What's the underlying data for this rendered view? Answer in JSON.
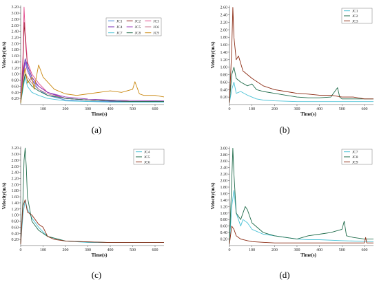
{
  "panels": [
    {
      "caption": "(a)"
    },
    {
      "caption": "(b)"
    },
    {
      "caption": "(c)"
    },
    {
      "caption": "(d)"
    }
  ],
  "chart_data": [
    {
      "type": "line",
      "panel": "a",
      "xlabel": "Time(s)",
      "ylabel": "Velocity(m/s)",
      "xlim": [
        0,
        640
      ],
      "ylim": [
        0,
        3.25
      ],
      "xticks": [
        "100",
        "200",
        "300",
        "400",
        "500",
        "600"
      ],
      "yticks": [
        "0.20",
        "0.40",
        "0.60",
        "0.80",
        "1.00",
        "1.20",
        "1.40",
        "1.60",
        "1.80",
        "2.00",
        "2.20",
        "2.40",
        "2.60",
        "2.80",
        "3.00",
        "3.20"
      ],
      "legend": "top-right",
      "series": [
        {
          "name": "JC1",
          "color": "#3b7fd4",
          "x": [
            0,
            10,
            20,
            30,
            50,
            80,
            120,
            200,
            300,
            400,
            500,
            640
          ],
          "y": [
            0.05,
            0.9,
            1.5,
            1.2,
            0.8,
            0.5,
            0.3,
            0.15,
            0.1,
            0.1,
            0.1,
            0.1
          ]
        },
        {
          "name": "JC2",
          "color": "#8b1a1a",
          "x": [
            0,
            10,
            15,
            20,
            30,
            50,
            80,
            120,
            200,
            300,
            400,
            500,
            640
          ],
          "y": [
            0.05,
            1.2,
            2.7,
            2.2,
            1.3,
            0.9,
            0.6,
            0.4,
            0.2,
            0.15,
            0.12,
            0.1,
            0.1
          ]
        },
        {
          "name": "JC3",
          "color": "#e14a8a",
          "x": [
            0,
            10,
            15,
            20,
            30,
            50,
            80,
            120,
            200,
            300,
            400,
            500,
            640
          ],
          "y": [
            0.05,
            1.6,
            3.2,
            2.4,
            1.4,
            1.0,
            0.7,
            0.4,
            0.2,
            0.15,
            0.12,
            0.1,
            0.1
          ]
        },
        {
          "name": "JC4",
          "color": "#7a2fb5",
          "x": [
            0,
            10,
            20,
            30,
            50,
            80,
            120,
            200,
            300,
            400,
            500,
            640
          ],
          "y": [
            0.05,
            1.0,
            1.5,
            1.3,
            0.9,
            0.6,
            0.4,
            0.2,
            0.15,
            0.12,
            0.1,
            0.1
          ]
        },
        {
          "name": "JC5",
          "color": "#9c3fbf",
          "x": [
            0,
            10,
            20,
            30,
            50,
            80,
            120,
            200,
            300,
            400,
            500,
            640
          ],
          "y": [
            0.05,
            0.8,
            1.4,
            1.1,
            0.8,
            0.6,
            0.4,
            0.25,
            0.18,
            0.15,
            0.13,
            0.12
          ]
        },
        {
          "name": "JC6",
          "color": "#c97a8f",
          "x": [
            0,
            10,
            20,
            30,
            50,
            80,
            120,
            200,
            300,
            400,
            500,
            640
          ],
          "y": [
            0.05,
            0.7,
            1.0,
            0.9,
            0.7,
            0.5,
            0.35,
            0.2,
            0.15,
            0.12,
            0.1,
            0.1
          ]
        },
        {
          "name": "JC7",
          "color": "#4bc2d6",
          "x": [
            0,
            10,
            20,
            30,
            50,
            80,
            120,
            200,
            300,
            400,
            500,
            640
          ],
          "y": [
            0.05,
            0.5,
            0.9,
            0.6,
            0.4,
            0.3,
            0.2,
            0.12,
            0.1,
            0.08,
            0.08,
            0.08
          ]
        },
        {
          "name": "JC8",
          "color": "#1f6b4a",
          "x": [
            0,
            10,
            20,
            30,
            50,
            80,
            120,
            200,
            300,
            400,
            500,
            640
          ],
          "y": [
            0.05,
            0.6,
            1.0,
            0.8,
            0.6,
            0.45,
            0.3,
            0.2,
            0.15,
            0.12,
            0.1,
            0.1
          ]
        },
        {
          "name": "JC9",
          "color": "#c9860c",
          "x": [
            0,
            10,
            20,
            30,
            50,
            60,
            80,
            100,
            150,
            200,
            250,
            300,
            350,
            400,
            450,
            500,
            510,
            530,
            550,
            600,
            640
          ],
          "y": [
            0.05,
            0.8,
            1.2,
            0.7,
            0.9,
            0.5,
            1.3,
            0.9,
            0.5,
            0.35,
            0.3,
            0.35,
            0.4,
            0.45,
            0.4,
            0.5,
            0.75,
            0.35,
            0.3,
            0.3,
            0.25
          ]
        }
      ]
    },
    {
      "type": "line",
      "panel": "b",
      "xlabel": "Time(s)",
      "ylabel": "Velocity(m/s)",
      "xlim": [
        0,
        640
      ],
      "ylim": [
        0,
        2.65
      ],
      "xticks": [
        "0",
        "100",
        "200",
        "300",
        "400",
        "500",
        "600"
      ],
      "yticks": [
        "0.20",
        "0.40",
        "0.60",
        "0.80",
        "1.00",
        "1.20",
        "1.40",
        "1.60",
        "1.80",
        "2.00",
        "2.20",
        "2.40",
        "2.60"
      ],
      "legend": "top-right",
      "series": [
        {
          "name": "JC1",
          "color": "#4bc2d6",
          "x": [
            0,
            10,
            20,
            30,
            50,
            80,
            120,
            150,
            200,
            300,
            400,
            500,
            640
          ],
          "y": [
            0.05,
            0.4,
            0.6,
            0.3,
            0.35,
            0.25,
            0.15,
            0.12,
            0.1,
            0.08,
            0.08,
            0.08,
            0.08
          ]
        },
        {
          "name": "JC2",
          "color": "#1f6b4a",
          "x": [
            0,
            10,
            20,
            30,
            50,
            80,
            100,
            120,
            150,
            200,
            250,
            300,
            350,
            400,
            450,
            480,
            490,
            500,
            550,
            640
          ],
          "y": [
            0.05,
            0.8,
            1.0,
            0.7,
            0.6,
            0.5,
            0.55,
            0.4,
            0.35,
            0.3,
            0.25,
            0.2,
            0.18,
            0.18,
            0.2,
            0.45,
            0.2,
            0.15,
            0.15,
            0.15
          ]
        },
        {
          "name": "JC3",
          "color": "#8b2a12",
          "x": [
            0,
            10,
            15,
            20,
            30,
            40,
            60,
            80,
            100,
            150,
            200,
            250,
            300,
            350,
            400,
            450,
            500,
            550,
            600,
            640
          ],
          "y": [
            0.05,
            1.5,
            2.6,
            1.8,
            1.2,
            1.3,
            0.9,
            0.8,
            0.7,
            0.5,
            0.4,
            0.35,
            0.3,
            0.28,
            0.25,
            0.25,
            0.2,
            0.2,
            0.15,
            0.15
          ]
        }
      ]
    },
    {
      "type": "line",
      "panel": "c",
      "xlabel": "Time(s)",
      "ylabel": "Velocity(m/s)",
      "xlim": [
        0,
        640
      ],
      "ylim": [
        0,
        3.25
      ],
      "xticks": [
        "0",
        "100",
        "200",
        "300",
        "400",
        "500",
        "600"
      ],
      "yticks": [
        "0.20",
        "0.40",
        "0.60",
        "0.80",
        "1.00",
        "1.20",
        "1.40",
        "1.60",
        "1.80",
        "2.00",
        "2.20",
        "2.40",
        "2.60",
        "2.80",
        "3.00",
        "3.20"
      ],
      "legend": "top-right",
      "series": [
        {
          "name": "JC4",
          "color": "#4bc2d6",
          "x": [
            0,
            10,
            20,
            30,
            50,
            80,
            120,
            200,
            300,
            400,
            500,
            640
          ],
          "y": [
            0.05,
            1.0,
            1.5,
            1.2,
            0.9,
            0.6,
            0.3,
            0.15,
            0.1,
            0.1,
            0.1,
            0.1
          ]
        },
        {
          "name": "JC5",
          "color": "#1f6b4a",
          "x": [
            0,
            10,
            15,
            20,
            25,
            30,
            50,
            80,
            120,
            200,
            300,
            400,
            500,
            640
          ],
          "y": [
            0.05,
            1.5,
            2.8,
            3.2,
            2.6,
            1.6,
            0.8,
            0.5,
            0.3,
            0.15,
            0.12,
            0.1,
            0.1,
            0.1
          ]
        },
        {
          "name": "JC6",
          "color": "#8b2a12",
          "x": [
            0,
            10,
            20,
            30,
            50,
            80,
            100,
            120,
            150,
            200,
            300,
            400,
            500,
            640
          ],
          "y": [
            0.05,
            1.3,
            1.5,
            1.1,
            1.0,
            0.7,
            0.6,
            0.3,
            0.2,
            0.15,
            0.12,
            0.1,
            0.1,
            0.1
          ]
        }
      ]
    },
    {
      "type": "line",
      "panel": "d",
      "xlabel": "Time(s)",
      "ylabel": "Velocity(m/s)",
      "xlim": [
        0,
        640
      ],
      "ylim": [
        0,
        3.05
      ],
      "xticks": [
        "0",
        "100",
        "200",
        "300",
        "400",
        "500",
        "600"
      ],
      "yticks": [
        "0.20",
        "0.40",
        "0.60",
        "0.80",
        "1.00",
        "1.20",
        "1.40",
        "1.60",
        "1.80",
        "2.00",
        "2.20",
        "2.40",
        "2.60",
        "2.80",
        "3.00"
      ],
      "legend": "top-right",
      "series": [
        {
          "name": "JC7",
          "color": "#4bc2d6",
          "x": [
            0,
            10,
            20,
            30,
            50,
            60,
            80,
            100,
            150,
            200,
            250,
            300,
            350,
            400,
            500,
            640
          ],
          "y": [
            0.05,
            1.2,
            1.7,
            1.0,
            0.6,
            0.8,
            0.7,
            0.5,
            0.35,
            0.3,
            0.25,
            0.2,
            0.18,
            0.18,
            0.15,
            0.12
          ]
        },
        {
          "name": "JC8",
          "color": "#1f6b4a",
          "x": [
            0,
            10,
            15,
            20,
            30,
            50,
            70,
            80,
            100,
            150,
            200,
            250,
            300,
            350,
            400,
            450,
            500,
            510,
            520,
            550,
            600,
            640
          ],
          "y": [
            0.05,
            2.0,
            3.0,
            2.2,
            1.0,
            0.8,
            1.2,
            1.1,
            0.7,
            0.4,
            0.3,
            0.25,
            0.2,
            0.3,
            0.35,
            0.4,
            0.5,
            0.75,
            0.3,
            0.25,
            0.2,
            0.2
          ]
        },
        {
          "name": "JC9",
          "color": "#8b2a12",
          "x": [
            0,
            10,
            20,
            30,
            50,
            80,
            100,
            150,
            200,
            300,
            400,
            500,
            600,
            605,
            610,
            640
          ],
          "y": [
            0.05,
            0.6,
            0.5,
            0.3,
            0.2,
            0.15,
            0.12,
            0.1,
            0.08,
            0.08,
            0.08,
            0.08,
            0.08,
            0.25,
            0.08,
            0.08
          ]
        }
      ]
    }
  ]
}
